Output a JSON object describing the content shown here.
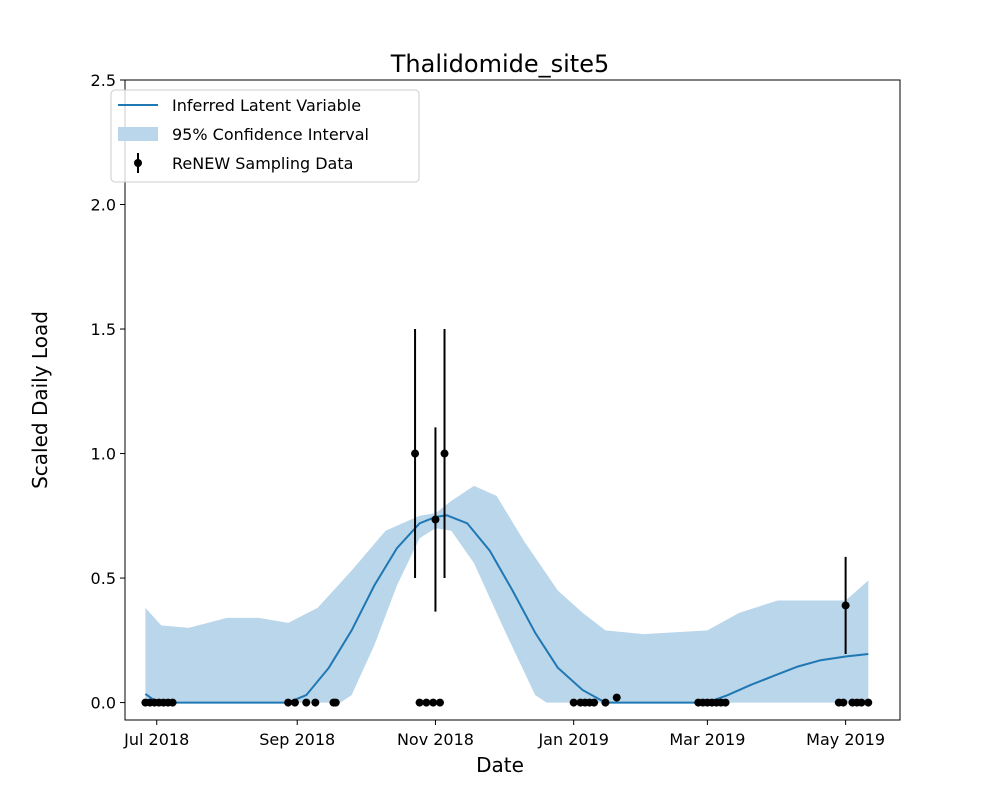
{
  "chart_data": {
    "type": "line",
    "title": "Thalidomide_site5",
    "xlabel": "Date",
    "ylabel": "Scaled Daily Load",
    "xlim": [
      "2018-06-17",
      "2019-05-25"
    ],
    "ylim": [
      -0.07,
      2.5
    ],
    "grid": false,
    "legend_position": "top-left",
    "x_ticks": [
      {
        "date": "2018-07-01",
        "label": "Jul 2018"
      },
      {
        "date": "2018-09-01",
        "label": "Sep 2018"
      },
      {
        "date": "2018-11-01",
        "label": "Nov 2018"
      },
      {
        "date": "2019-01-01",
        "label": "Jan 2019"
      },
      {
        "date": "2019-03-01",
        "label": "Mar 2019"
      },
      {
        "date": "2019-05-01",
        "label": "May 2019"
      }
    ],
    "y_ticks": [
      {
        "value": 0.0,
        "label": "0.0"
      },
      {
        "value": 0.5,
        "label": "0.5"
      },
      {
        "value": 1.0,
        "label": "1.0"
      },
      {
        "value": 1.5,
        "label": "1.5"
      },
      {
        "value": 2.0,
        "label": "2.0"
      },
      {
        "value": 2.5,
        "label": "2.5"
      }
    ],
    "legend": {
      "line_label": "Inferred Latent Variable",
      "band_label": "95% Confidence Interval",
      "points_label": "ReNEW Sampling Data"
    },
    "colors": {
      "line": "#1f77b4",
      "band": "#bad6ea",
      "points": "#000000"
    },
    "latent": [
      {
        "date": "2018-06-26",
        "value": 0.035
      },
      {
        "date": "2018-06-29",
        "value": 0.015
      },
      {
        "date": "2018-07-03",
        "value": 0.0
      },
      {
        "date": "2018-08-28",
        "value": 0.0
      },
      {
        "date": "2018-09-05",
        "value": 0.03
      },
      {
        "date": "2018-09-15",
        "value": 0.14
      },
      {
        "date": "2018-09-25",
        "value": 0.29
      },
      {
        "date": "2018-10-05",
        "value": 0.47
      },
      {
        "date": "2018-10-15",
        "value": 0.62
      },
      {
        "date": "2018-10-25",
        "value": 0.72
      },
      {
        "date": "2018-11-01",
        "value": 0.745
      },
      {
        "date": "2018-11-06",
        "value": 0.752
      },
      {
        "date": "2018-11-15",
        "value": 0.72
      },
      {
        "date": "2018-11-25",
        "value": 0.61
      },
      {
        "date": "2018-12-05",
        "value": 0.45
      },
      {
        "date": "2018-12-15",
        "value": 0.28
      },
      {
        "date": "2018-12-25",
        "value": 0.14
      },
      {
        "date": "2019-01-05",
        "value": 0.05
      },
      {
        "date": "2019-01-15",
        "value": 0.0
      },
      {
        "date": "2019-03-01",
        "value": 0.0
      },
      {
        "date": "2019-03-10",
        "value": 0.03
      },
      {
        "date": "2019-03-20",
        "value": 0.07
      },
      {
        "date": "2019-03-31",
        "value": 0.11
      },
      {
        "date": "2019-04-10",
        "value": 0.145
      },
      {
        "date": "2019-04-20",
        "value": 0.17
      },
      {
        "date": "2019-05-01",
        "value": 0.185
      },
      {
        "date": "2019-05-11",
        "value": 0.195
      }
    ],
    "confidence_upper": [
      {
        "date": "2018-06-26",
        "value": 0.38
      },
      {
        "date": "2018-07-03",
        "value": 0.31
      },
      {
        "date": "2018-07-15",
        "value": 0.3
      },
      {
        "date": "2018-08-01",
        "value": 0.34
      },
      {
        "date": "2018-08-15",
        "value": 0.34
      },
      {
        "date": "2018-08-28",
        "value": 0.32
      },
      {
        "date": "2018-09-10",
        "value": 0.38
      },
      {
        "date": "2018-09-25",
        "value": 0.53
      },
      {
        "date": "2018-10-10",
        "value": 0.69
      },
      {
        "date": "2018-10-25",
        "value": 0.75
      },
      {
        "date": "2018-11-01",
        "value": 0.76
      },
      {
        "date": "2018-11-08",
        "value": 0.81
      },
      {
        "date": "2018-11-18",
        "value": 0.87
      },
      {
        "date": "2018-11-28",
        "value": 0.83
      },
      {
        "date": "2018-12-10",
        "value": 0.65
      },
      {
        "date": "2018-12-25",
        "value": 0.45
      },
      {
        "date": "2019-01-05",
        "value": 0.36
      },
      {
        "date": "2019-01-15",
        "value": 0.29
      },
      {
        "date": "2019-02-01",
        "value": 0.275
      },
      {
        "date": "2019-03-01",
        "value": 0.29
      },
      {
        "date": "2019-03-15",
        "value": 0.36
      },
      {
        "date": "2019-04-01",
        "value": 0.41
      },
      {
        "date": "2019-04-15",
        "value": 0.41
      },
      {
        "date": "2019-05-01",
        "value": 0.41
      },
      {
        "date": "2019-05-11",
        "value": 0.49
      }
    ],
    "confidence_lower": [
      {
        "date": "2018-06-26",
        "value": 0.0
      },
      {
        "date": "2018-09-20",
        "value": 0.0
      },
      {
        "date": "2018-09-25",
        "value": 0.03
      },
      {
        "date": "2018-10-05",
        "value": 0.23
      },
      {
        "date": "2018-10-15",
        "value": 0.47
      },
      {
        "date": "2018-10-25",
        "value": 0.66
      },
      {
        "date": "2018-11-01",
        "value": 0.7
      },
      {
        "date": "2018-11-08",
        "value": 0.69
      },
      {
        "date": "2018-11-18",
        "value": 0.56
      },
      {
        "date": "2018-12-01",
        "value": 0.3
      },
      {
        "date": "2018-12-15",
        "value": 0.03
      },
      {
        "date": "2018-12-20",
        "value": 0.0
      },
      {
        "date": "2019-05-11",
        "value": 0.0
      }
    ],
    "samples": [
      {
        "date": "2018-06-26",
        "value": 0.0
      },
      {
        "date": "2018-06-28",
        "value": 0.0
      },
      {
        "date": "2018-06-30",
        "value": 0.0
      },
      {
        "date": "2018-07-02",
        "value": 0.0
      },
      {
        "date": "2018-07-04",
        "value": 0.0
      },
      {
        "date": "2018-07-06",
        "value": 0.0
      },
      {
        "date": "2018-07-08",
        "value": 0.0
      },
      {
        "date": "2018-08-28",
        "value": 0.0
      },
      {
        "date": "2018-08-31",
        "value": 0.0
      },
      {
        "date": "2018-09-05",
        "value": 0.0
      },
      {
        "date": "2018-09-09",
        "value": 0.0
      },
      {
        "date": "2018-09-17",
        "value": 0.0
      },
      {
        "date": "2018-09-18",
        "value": 0.0
      },
      {
        "date": "2018-10-23",
        "value": 1.0,
        "error": 0.5
      },
      {
        "date": "2018-10-25",
        "value": 0.0
      },
      {
        "date": "2018-10-28",
        "value": 0.0
      },
      {
        "date": "2018-10-31",
        "value": 0.0
      },
      {
        "date": "2018-11-01",
        "value": 0.735,
        "error": 0.37
      },
      {
        "date": "2018-11-03",
        "value": 0.0
      },
      {
        "date": "2018-11-05",
        "value": 1.0,
        "error": 0.5
      },
      {
        "date": "2019-01-01",
        "value": 0.0
      },
      {
        "date": "2019-01-04",
        "value": 0.0
      },
      {
        "date": "2019-01-06",
        "value": 0.0
      },
      {
        "date": "2019-01-08",
        "value": 0.0
      },
      {
        "date": "2019-01-10",
        "value": 0.0
      },
      {
        "date": "2019-01-15",
        "value": 0.0
      },
      {
        "date": "2019-01-20",
        "value": 0.02
      },
      {
        "date": "2019-02-25",
        "value": 0.0
      },
      {
        "date": "2019-02-27",
        "value": 0.0
      },
      {
        "date": "2019-03-01",
        "value": 0.0
      },
      {
        "date": "2019-03-03",
        "value": 0.0
      },
      {
        "date": "2019-03-05",
        "value": 0.0
      },
      {
        "date": "2019-03-07",
        "value": 0.0
      },
      {
        "date": "2019-03-09",
        "value": 0.0
      },
      {
        "date": "2019-04-28",
        "value": 0.0
      },
      {
        "date": "2019-04-30",
        "value": 0.0
      },
      {
        "date": "2019-05-01",
        "value": 0.39,
        "error": 0.195
      },
      {
        "date": "2019-05-04",
        "value": 0.0
      },
      {
        "date": "2019-05-06",
        "value": 0.0
      },
      {
        "date": "2019-05-08",
        "value": 0.0
      },
      {
        "date": "2019-05-11",
        "value": 0.0
      }
    ]
  }
}
